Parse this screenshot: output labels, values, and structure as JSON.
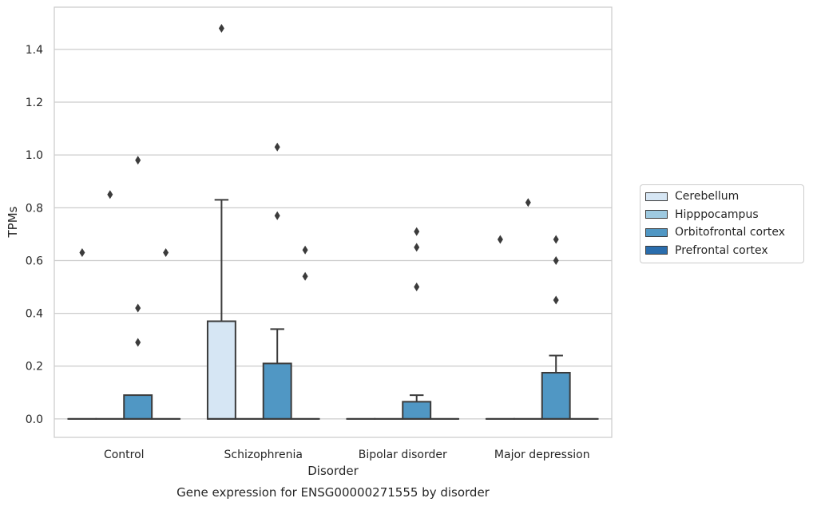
{
  "chart_data": {
    "type": "box",
    "title": "Gene expression for ENSG00000271555 by disorder",
    "xlabel": "Disorder",
    "ylabel": "TPMs",
    "categories": [
      "Control",
      "Schizophrenia",
      "Bipolar disorder",
      "Major depression"
    ],
    "ylim": [
      -0.07,
      1.56
    ],
    "yticks": [
      "0.0",
      "0.2",
      "0.4",
      "0.6",
      "0.8",
      "1.0",
      "1.2",
      "1.4"
    ],
    "grid": "horizontal",
    "legend_position": "right",
    "series": [
      {
        "name": "Cerebellum",
        "color": "#d6e6f4",
        "boxes": [
          {
            "q1": 0,
            "median": 0,
            "q3": 0,
            "whisker_low": 0,
            "whisker_high": 0,
            "outliers": [
              0.63
            ]
          },
          {
            "q1": 0,
            "median": 0,
            "q3": 0.37,
            "whisker_low": 0,
            "whisker_high": 0.83,
            "outliers": [
              1.48
            ]
          },
          {
            "q1": 0,
            "median": 0,
            "q3": 0,
            "whisker_low": 0,
            "whisker_high": 0,
            "outliers": []
          },
          {
            "q1": 0,
            "median": 0,
            "q3": 0,
            "whisker_low": 0,
            "whisker_high": 0,
            "outliers": [
              0.68
            ]
          }
        ]
      },
      {
        "name": "Hipppocampus",
        "color": "#9ecae1",
        "boxes": [
          {
            "q1": 0,
            "median": 0,
            "q3": 0,
            "whisker_low": 0,
            "whisker_high": 0,
            "outliers": [
              0.85
            ]
          },
          {
            "q1": 0,
            "median": 0,
            "q3": 0,
            "whisker_low": 0,
            "whisker_high": 0,
            "outliers": []
          },
          {
            "q1": 0,
            "median": 0,
            "q3": 0,
            "whisker_low": 0,
            "whisker_high": 0,
            "outliers": []
          },
          {
            "q1": 0,
            "median": 0,
            "q3": 0,
            "whisker_low": 0,
            "whisker_high": 0,
            "outliers": [
              0.82
            ]
          }
        ]
      },
      {
        "name": "Orbitofrontal cortex",
        "color": "#5097c4",
        "boxes": [
          {
            "q1": 0,
            "median": 0,
            "q3": 0.09,
            "whisker_low": 0,
            "whisker_high": 0.09,
            "outliers": [
              0.98,
              0.42,
              0.29
            ]
          },
          {
            "q1": 0,
            "median": 0,
            "q3": 0.21,
            "whisker_low": 0,
            "whisker_high": 0.34,
            "outliers": [
              1.03,
              0.77
            ]
          },
          {
            "q1": 0,
            "median": 0,
            "q3": 0.065,
            "whisker_low": 0,
            "whisker_high": 0.09,
            "outliers": [
              0.71,
              0.65,
              0.5
            ]
          },
          {
            "q1": 0,
            "median": 0,
            "q3": 0.175,
            "whisker_low": 0,
            "whisker_high": 0.24,
            "outliers": [
              0.68,
              0.6,
              0.45
            ]
          }
        ]
      },
      {
        "name": "Prefrontal cortex",
        "color": "#2a6dad",
        "boxes": [
          {
            "q1": 0,
            "median": 0,
            "q3": 0,
            "whisker_low": 0,
            "whisker_high": 0,
            "outliers": [
              0.63
            ]
          },
          {
            "q1": 0,
            "median": 0,
            "q3": 0,
            "whisker_low": 0,
            "whisker_high": 0,
            "outliers": [
              0.64,
              0.54
            ]
          },
          {
            "q1": 0,
            "median": 0,
            "q3": 0,
            "whisker_low": 0,
            "whisker_high": 0,
            "outliers": []
          },
          {
            "q1": 0,
            "median": 0,
            "q3": 0,
            "whisker_low": 0,
            "whisker_high": 0,
            "outliers": []
          }
        ]
      }
    ]
  }
}
